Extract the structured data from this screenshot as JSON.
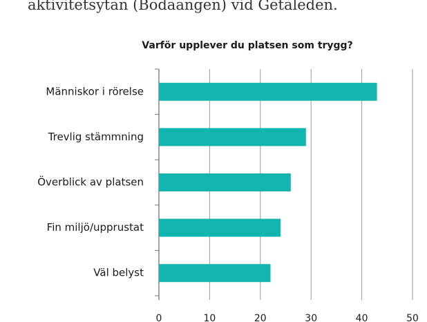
{
  "text": "aktivitetsytan (Bodaängen) vid Getaleden.",
  "chart_data": {
    "type": "bar",
    "orientation": "horizontal",
    "title": "Varför upplever du platsen som trygg?",
    "categories": [
      "Människor i rörelse",
      "Trevlig stämmning",
      "Överblick av platsen",
      "Fin miljö/upprustat",
      "Väl belyst"
    ],
    "values": [
      43,
      29,
      26,
      24,
      22
    ],
    "color": "#13b5b0",
    "xlim": [
      0,
      50
    ],
    "xticks": [
      0,
      10,
      20,
      30,
      40,
      50
    ],
    "grid": true
  }
}
